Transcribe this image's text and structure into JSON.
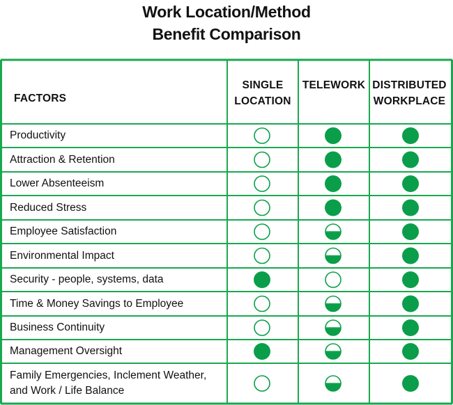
{
  "title_line1": "Work Location/Method",
  "title_line2": "Benefit Comparison",
  "colors": {
    "grid": "#1aa84e",
    "fill": "#0b9e4a"
  },
  "chart_data": {
    "type": "table",
    "headers": {
      "factors": "FACTORS",
      "single_line1": "SINGLE",
      "single_line2": "LOCATION",
      "telework": "TELEWORK",
      "distributed_line1": "DISTRIBUTED",
      "distributed_line2": "WORKPLACE"
    },
    "columns": [
      "SINGLE LOCATION",
      "TELEWORK",
      "DISTRIBUTED WORKPLACE"
    ],
    "legend_values": {
      "empty": 0,
      "half": 0.5,
      "full": 1
    },
    "rows": [
      {
        "line1": "Productivity",
        "values": [
          0,
          1,
          1
        ]
      },
      {
        "line1": "Attraction & Retention",
        "values": [
          0,
          1,
          1
        ]
      },
      {
        "line1": "Lower Absenteeism",
        "values": [
          0,
          1,
          1
        ]
      },
      {
        "line1": "Reduced Stress",
        "values": [
          0,
          1,
          1
        ]
      },
      {
        "line1": "Employee Satisfaction",
        "values": [
          0,
          0.5,
          1
        ]
      },
      {
        "line1": "Environmental Impact",
        "values": [
          0,
          0.5,
          1
        ]
      },
      {
        "line1": "Security - people, systems, data",
        "values": [
          1,
          0,
          1
        ]
      },
      {
        "line1": "Time & Money Savings to Employee",
        "values": [
          0,
          0.5,
          1
        ]
      },
      {
        "line1": "Business Continuity",
        "values": [
          0,
          0.5,
          1
        ]
      },
      {
        "line1": "Management Oversight",
        "values": [
          1,
          0.5,
          1
        ]
      },
      {
        "line1": "Family Emergencies, Inclement Weather,",
        "line2": "and Work / Life Balance",
        "values": [
          0,
          0.5,
          1
        ]
      }
    ]
  }
}
